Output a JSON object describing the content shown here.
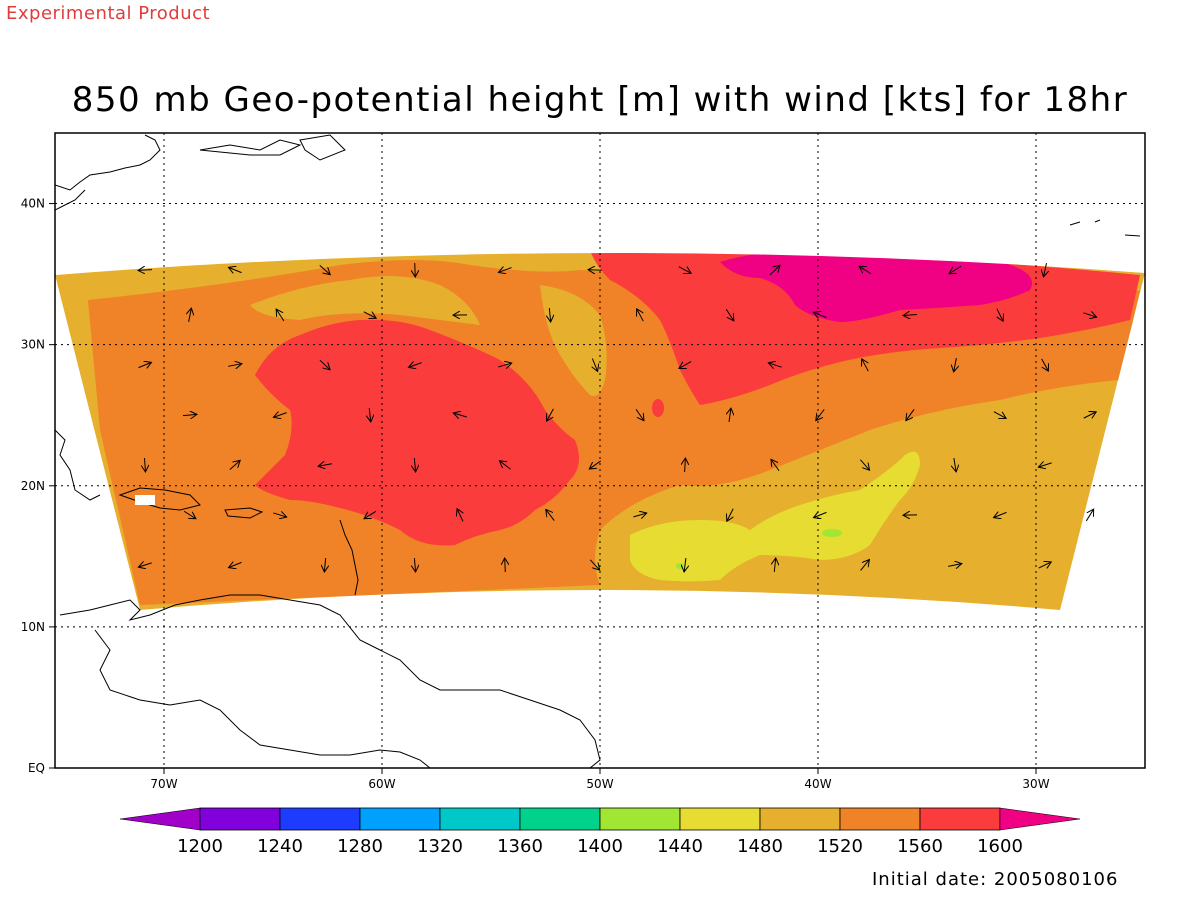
{
  "header": {
    "banner": "Experimental Product",
    "title": "850 mb Geo-potential height [m] with wind [kts] for 18hr"
  },
  "footer": {
    "initial_date": "Initial date: 2005080106"
  },
  "map": {
    "lon_range": [
      -75,
      -25
    ],
    "lat_range": [
      0,
      45
    ],
    "grid_lines": "dotted",
    "lon_ticks": [
      {
        "value": -70,
        "label": "70W"
      },
      {
        "value": -60,
        "label": "60W"
      },
      {
        "value": -50,
        "label": "50W"
      },
      {
        "value": -40,
        "label": "40W"
      },
      {
        "value": -30,
        "label": "30W"
      }
    ],
    "lat_ticks": [
      {
        "value": 0,
        "label": "EQ"
      },
      {
        "value": 10,
        "label": "10N"
      },
      {
        "value": 20,
        "label": "20N"
      },
      {
        "value": 30,
        "label": "30N"
      },
      {
        "value": 40,
        "label": "40N"
      }
    ]
  },
  "colorbar": {
    "levels": [
      "1200",
      "1240",
      "1280",
      "1320",
      "1360",
      "1400",
      "1440",
      "1480",
      "1520",
      "1560",
      "1600"
    ],
    "colors": [
      "#a000c8",
      "#8200dc",
      "#1e3cff",
      "#00a0ff",
      "#00c8c8",
      "#00d28c",
      "#a0e632",
      "#e6dc32",
      "#e6af2d",
      "#f08228",
      "#fa3c3c",
      "#f00082"
    ]
  },
  "colors": {
    "banner": "#e03c3c",
    "c1520": "#e6af2d",
    "c1560": "#f08228",
    "c1600": "#fa3c3c",
    "c1640": "#f00082",
    "c1480": "#e6dc32",
    "c1440": "#a0e632"
  }
}
